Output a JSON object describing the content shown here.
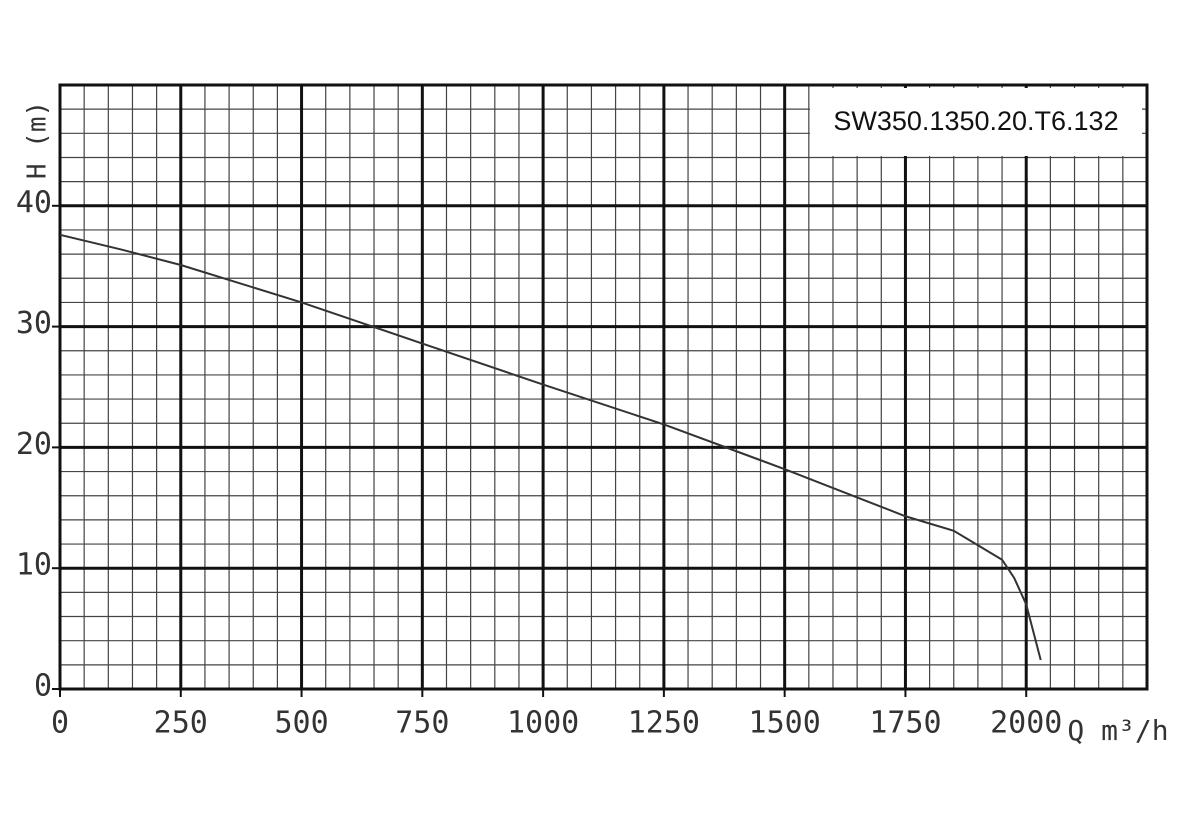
{
  "chart_data": {
    "type": "line",
    "annotation": "SW350.1350.20.T6.132",
    "xlabel": "Q m³/h",
    "ylabel": "H (m)",
    "x": [
      0,
      125,
      250,
      500,
      750,
      1000,
      1250,
      1500,
      1750,
      1850,
      1900,
      1950,
      1975,
      2000,
      2030
    ],
    "values": [
      37.6,
      36.4,
      35.1,
      32.0,
      28.6,
      25.2,
      21.9,
      18.2,
      14.3,
      13.1,
      11.9,
      10.7,
      9.2,
      7.0,
      2.4
    ],
    "color": "#333333",
    "xlim": [
      0,
      2250
    ],
    "ylim": [
      0,
      50
    ],
    "xticks": [
      0,
      250,
      500,
      750,
      1000,
      1250,
      1500,
      1750,
      2000
    ],
    "yticks": [
      0,
      10,
      20,
      30,
      40
    ],
    "grid": true
  }
}
